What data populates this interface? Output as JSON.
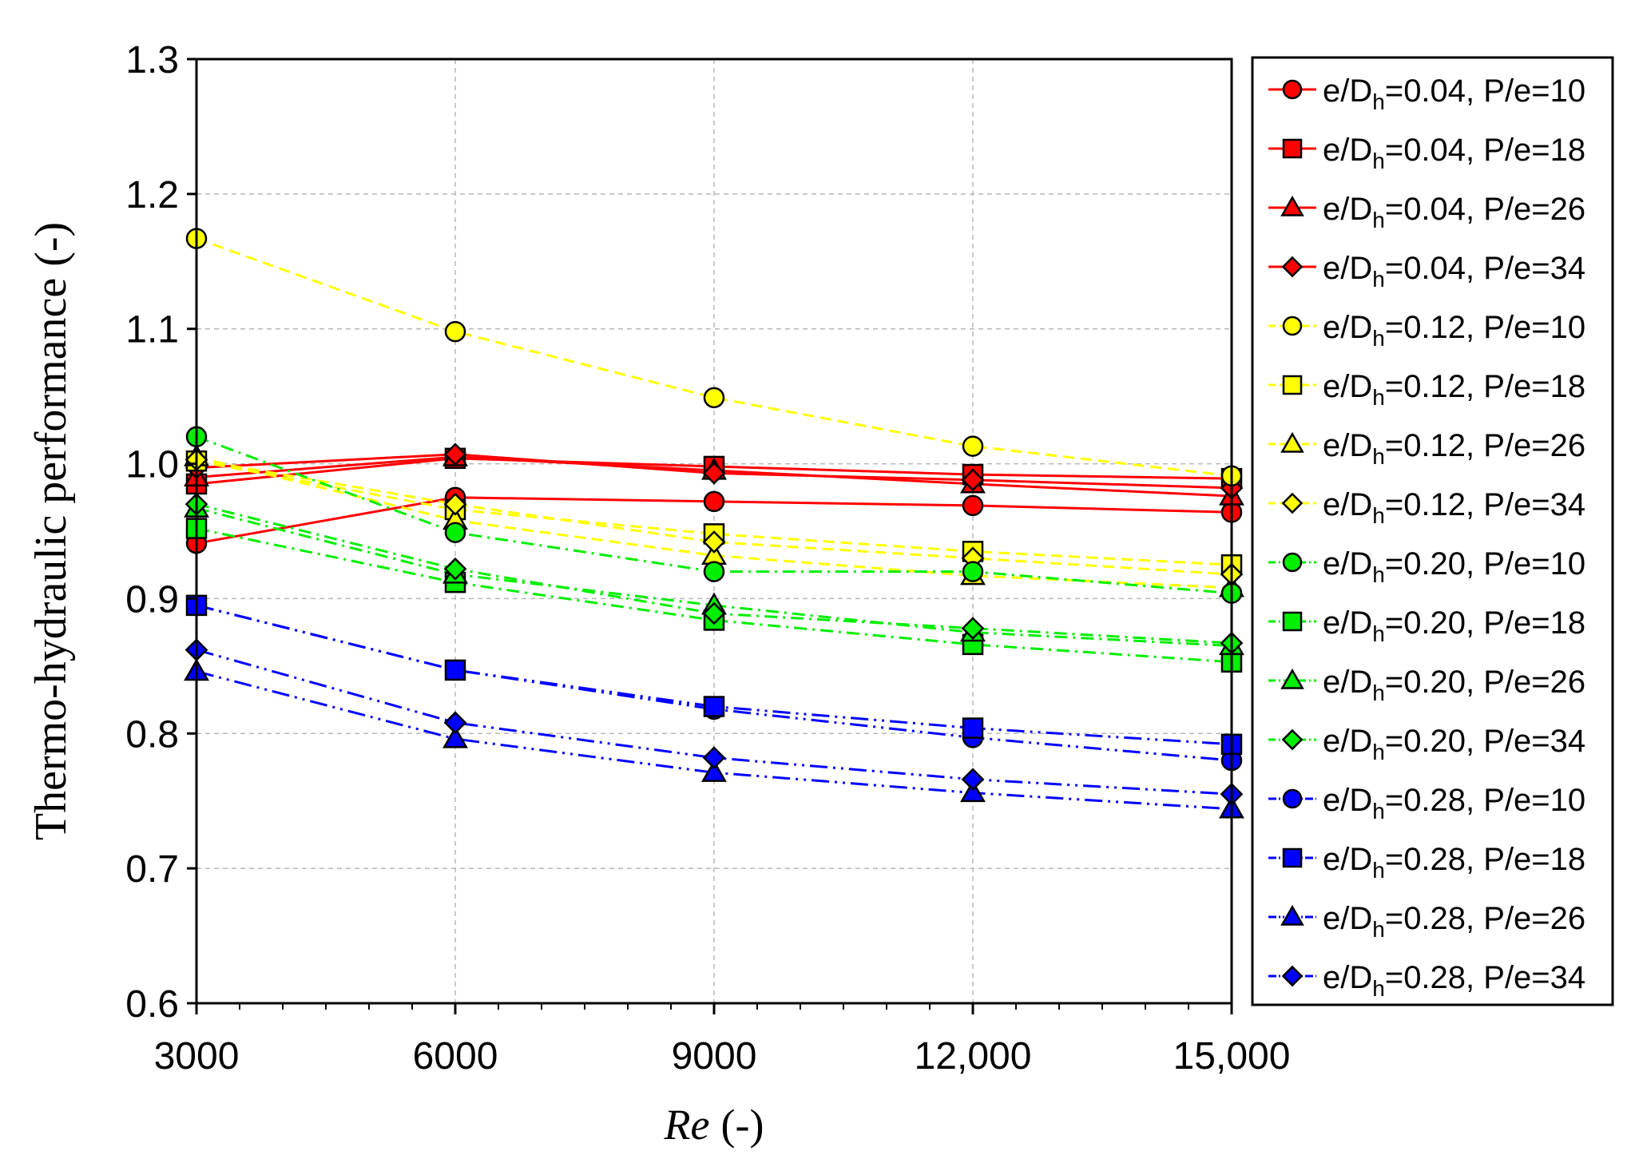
{
  "chart_data": {
    "type": "line",
    "title": "",
    "xlabel": "(-)",
    "xlabel_var": "Re",
    "ylabel": "Thermo-hydraulic performance (-)",
    "x": [
      3000,
      6000,
      9000,
      12000,
      15000
    ],
    "x_tick_labels": [
      "3000",
      "6000",
      "9000",
      "12,000",
      "15,000"
    ],
    "ylim": [
      0.6,
      1.3
    ],
    "y_ticks": [
      "0.6",
      "0.7",
      "0.8",
      "0.9",
      "1.0",
      "1.1",
      "1.2",
      "1.3"
    ],
    "grid": true,
    "legend_position": "right",
    "series": [
      {
        "e": "0.04",
        "pe": "10",
        "color": "#ff0000",
        "marker": "circle",
        "dash": "solid",
        "values": [
          0.941,
          0.975,
          0.972,
          0.969,
          0.964
        ]
      },
      {
        "e": "0.04",
        "pe": "18",
        "color": "#ff0000",
        "marker": "square",
        "dash": "solid",
        "values": [
          0.985,
          1.004,
          0.998,
          0.992,
          0.989
        ]
      },
      {
        "e": "0.04",
        "pe": "26",
        "color": "#ff0000",
        "marker": "triangle",
        "dash": "solid",
        "values": [
          0.99,
          1.005,
          0.995,
          0.985,
          0.976
        ]
      },
      {
        "e": "0.04",
        "pe": "34",
        "color": "#ff0000",
        "marker": "diamond",
        "dash": "solid",
        "values": [
          0.997,
          1.007,
          0.993,
          0.988,
          0.982
        ]
      },
      {
        "e": "0.12",
        "pe": "10",
        "color": "#ffff00",
        "marker": "circle",
        "dash": "dash",
        "values": [
          1.167,
          1.098,
          1.049,
          1.013,
          0.991
        ]
      },
      {
        "e": "0.12",
        "pe": "18",
        "color": "#ffff00",
        "marker": "square",
        "dash": "dash",
        "values": [
          1.002,
          0.966,
          0.948,
          0.935,
          0.925
        ]
      },
      {
        "e": "0.12",
        "pe": "26",
        "color": "#ffff00",
        "marker": "triangle",
        "dash": "dash",
        "values": [
          1.005,
          0.958,
          0.932,
          0.917,
          0.908
        ]
      },
      {
        "e": "0.12",
        "pe": "34",
        "color": "#ffff00",
        "marker": "diamond",
        "dash": "dash",
        "values": [
          1.003,
          0.97,
          0.942,
          0.93,
          0.918
        ]
      },
      {
        "e": "0.20",
        "pe": "10",
        "color": "#00ee00",
        "marker": "circle",
        "dash": "dashdot",
        "values": [
          1.02,
          0.949,
          0.92,
          0.92,
          0.904
        ]
      },
      {
        "e": "0.20",
        "pe": "18",
        "color": "#00ee00",
        "marker": "square",
        "dash": "dashdot",
        "values": [
          0.952,
          0.912,
          0.884,
          0.866,
          0.853
        ]
      },
      {
        "e": "0.20",
        "pe": "26",
        "color": "#00ee00",
        "marker": "triangle",
        "dash": "dashdot",
        "values": [
          0.967,
          0.918,
          0.895,
          0.875,
          0.865
        ]
      },
      {
        "e": "0.20",
        "pe": "34",
        "color": "#00ee00",
        "marker": "diamond",
        "dash": "dashdot",
        "values": [
          0.97,
          0.922,
          0.889,
          0.878,
          0.867
        ]
      },
      {
        "e": "0.28",
        "pe": "10",
        "color": "#0000ff",
        "marker": "circle",
        "dash": "dashdotdot",
        "values": [
          0.895,
          0.847,
          0.818,
          0.797,
          0.78
        ]
      },
      {
        "e": "0.28",
        "pe": "18",
        "color": "#0000ff",
        "marker": "square",
        "dash": "dashdotdot",
        "values": [
          0.895,
          0.847,
          0.82,
          0.804,
          0.792
        ]
      },
      {
        "e": "0.28",
        "pe": "26",
        "color": "#0000ff",
        "marker": "triangle",
        "dash": "dashdotdot",
        "values": [
          0.846,
          0.796,
          0.771,
          0.756,
          0.744
        ]
      },
      {
        "e": "0.28",
        "pe": "34",
        "color": "#0000ff",
        "marker": "diamond",
        "dash": "dashdotdot",
        "values": [
          0.862,
          0.808,
          0.782,
          0.766,
          0.755
        ]
      }
    ]
  }
}
